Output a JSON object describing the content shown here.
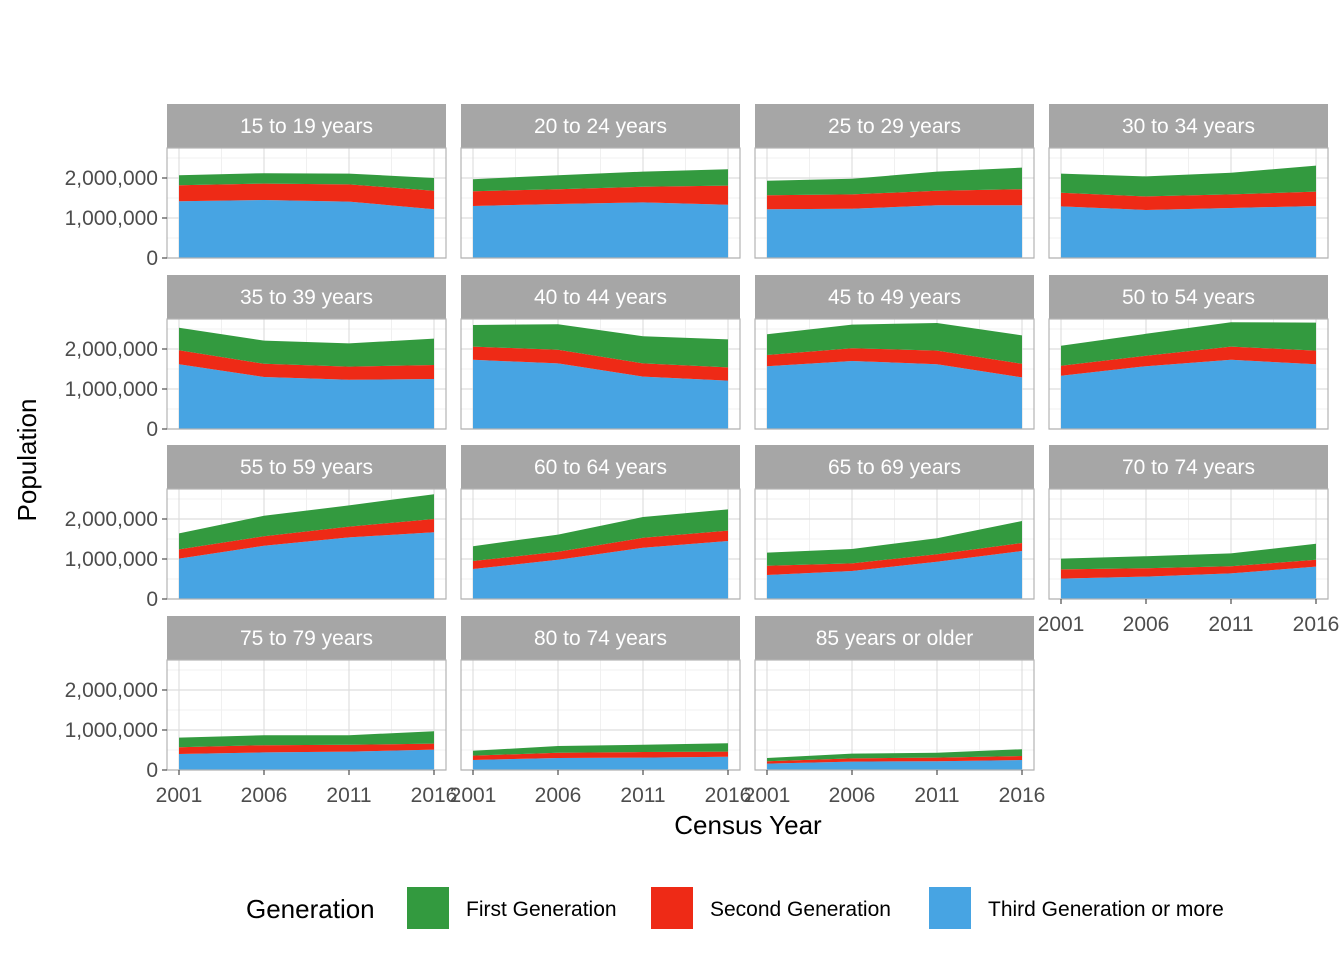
{
  "chart_data": {
    "type": "area",
    "stacked": true,
    "facet_columns": 4,
    "xlabel": "Census Year",
    "ylabel": "Population",
    "x": [
      2001,
      2006,
      2011,
      2016
    ],
    "x_ticks": [
      "2001",
      "2006",
      "2011",
      "2016"
    ],
    "ylim": [
      0,
      2750000
    ],
    "y_ticks": [
      {
        "value": 0,
        "label": "0"
      },
      {
        "value": 1000000,
        "label": "1,000,000"
      },
      {
        "value": 2000000,
        "label": "2,000,000"
      }
    ],
    "grid": true,
    "legend": {
      "title": "Generation",
      "position": "bottom",
      "entries": [
        {
          "key": "first",
          "name": "First Generation",
          "color": "#339a3f"
        },
        {
          "key": "second",
          "name": "Second Generation",
          "color": "#ee2a16"
        },
        {
          "key": "third",
          "name": "Third Generation or more",
          "color": "#47a4e3"
        }
      ]
    },
    "stack_order": [
      "third",
      "second",
      "first"
    ],
    "panels": [
      {
        "label": "15 to 19 years",
        "third": [
          1420000,
          1450000,
          1410000,
          1220000
        ],
        "second": [
          400000,
          410000,
          430000,
          460000
        ],
        "first": [
          250000,
          260000,
          270000,
          320000
        ]
      },
      {
        "label": "20 to 24 years",
        "third": [
          1300000,
          1350000,
          1390000,
          1330000
        ],
        "second": [
          370000,
          370000,
          390000,
          480000
        ],
        "first": [
          300000,
          350000,
          380000,
          410000
        ]
      },
      {
        "label": "25 to 29 years",
        "third": [
          1220000,
          1230000,
          1320000,
          1320000
        ],
        "second": [
          350000,
          360000,
          360000,
          400000
        ],
        "first": [
          360000,
          390000,
          480000,
          540000
        ]
      },
      {
        "label": "30 to 34 years",
        "third": [
          1290000,
          1200000,
          1250000,
          1300000
        ],
        "second": [
          340000,
          340000,
          340000,
          360000
        ],
        "first": [
          480000,
          500000,
          540000,
          650000
        ]
      },
      {
        "label": "35 to 39 years",
        "third": [
          1620000,
          1300000,
          1230000,
          1250000
        ],
        "second": [
          350000,
          330000,
          330000,
          350000
        ],
        "first": [
          560000,
          580000,
          580000,
          660000
        ]
      },
      {
        "label": "40 to 44 years",
        "third": [
          1730000,
          1640000,
          1310000,
          1210000
        ],
        "second": [
          330000,
          340000,
          330000,
          330000
        ],
        "first": [
          540000,
          640000,
          680000,
          700000
        ]
      },
      {
        "label": "45 to 49 years",
        "third": [
          1570000,
          1700000,
          1620000,
          1290000
        ],
        "second": [
          280000,
          320000,
          340000,
          340000
        ],
        "first": [
          520000,
          590000,
          690000,
          710000
        ]
      },
      {
        "label": "50 to 54 years",
        "third": [
          1330000,
          1570000,
          1730000,
          1620000
        ],
        "second": [
          250000,
          260000,
          330000,
          340000
        ],
        "first": [
          500000,
          550000,
          610000,
          700000
        ]
      },
      {
        "label": "55 to 59 years",
        "third": [
          1010000,
          1330000,
          1540000,
          1670000
        ],
        "second": [
          230000,
          240000,
          270000,
          330000
        ],
        "first": [
          400000,
          510000,
          530000,
          620000
        ]
      },
      {
        "label": "60 to 64 years",
        "third": [
          750000,
          980000,
          1280000,
          1450000
        ],
        "second": [
          200000,
          200000,
          250000,
          260000
        ],
        "first": [
          370000,
          430000,
          520000,
          530000
        ]
      },
      {
        "label": "65 to 69 years",
        "third": [
          600000,
          700000,
          930000,
          1200000
        ],
        "second": [
          230000,
          190000,
          190000,
          200000
        ],
        "first": [
          330000,
          360000,
          400000,
          550000
        ]
      },
      {
        "label": "70 to 74 years",
        "third": [
          510000,
          560000,
          640000,
          810000
        ],
        "second": [
          230000,
          210000,
          180000,
          170000
        ],
        "first": [
          270000,
          300000,
          320000,
          400000
        ]
      },
      {
        "label": "75 to 79 years",
        "third": [
          400000,
          440000,
          460000,
          510000
        ],
        "second": [
          170000,
          180000,
          170000,
          150000
        ],
        "first": [
          240000,
          250000,
          240000,
          310000
        ]
      },
      {
        "label": "80 to 74 years",
        "third": [
          250000,
          300000,
          310000,
          330000
        ],
        "second": [
          110000,
          130000,
          140000,
          130000
        ],
        "first": [
          120000,
          170000,
          180000,
          210000
        ]
      },
      {
        "label": "85 years or older",
        "third": [
          160000,
          210000,
          220000,
          250000
        ],
        "second": [
          60000,
          80000,
          90000,
          100000
        ],
        "first": [
          80000,
          120000,
          120000,
          170000
        ]
      }
    ]
  }
}
